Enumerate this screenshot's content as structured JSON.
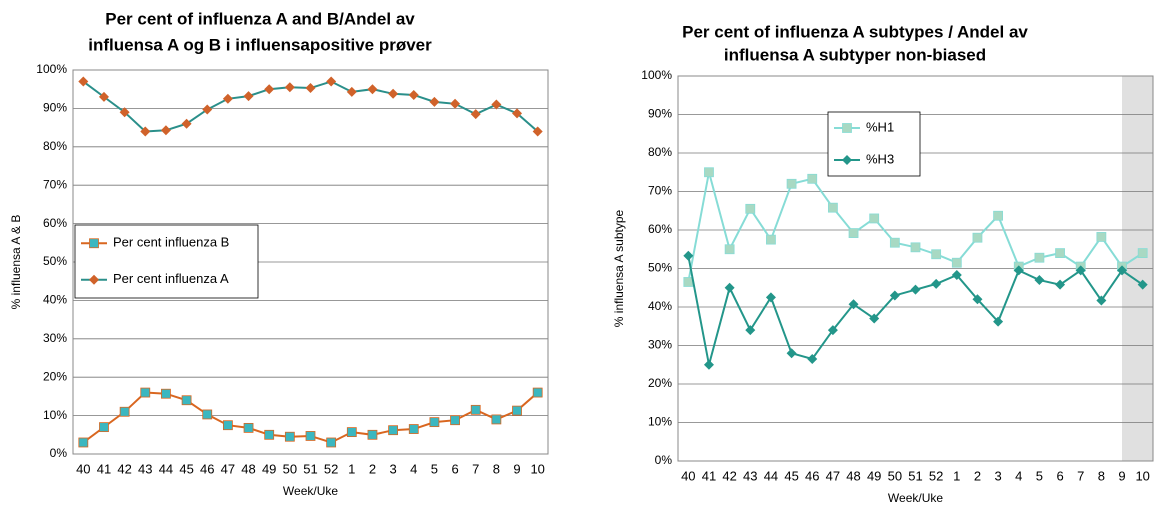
{
  "chart_data": [
    {
      "type": "line",
      "title": [
        "Per cent of influenza A and B/Andel av",
        "influensa A og B i influensapositive prøver"
      ],
      "x_label": "Week/Uke",
      "y_label": "% influensa A & B",
      "categories": [
        "40",
        "41",
        "42",
        "43",
        "44",
        "45",
        "46",
        "47",
        "48",
        "49",
        "50",
        "51",
        "52",
        "1",
        "2",
        "3",
        "4",
        "5",
        "6",
        "7",
        "8",
        "9",
        "10"
      ],
      "series": [
        {
          "name": "Per cent influenza B",
          "color": "#d9661f",
          "marker": "square",
          "marker_color": "#3bb7c0",
          "values": [
            3,
            7,
            11,
            16,
            15.7,
            14,
            10.3,
            7.5,
            6.8,
            5,
            4.5,
            4.7,
            3,
            5.7,
            5,
            6.2,
            6.5,
            8.3,
            8.8,
            11.5,
            9,
            11.3,
            16
          ]
        },
        {
          "name": "Per cent influenza A",
          "color": "#2a8f8a",
          "marker": "diamond",
          "marker_color": "#d0622a",
          "values": [
            97,
            93,
            89,
            84,
            84.3,
            86,
            89.7,
            92.5,
            93.2,
            95,
            95.5,
            95.3,
            97,
            94.3,
            95,
            93.8,
            93.5,
            91.7,
            91.2,
            88.5,
            91,
            88.7,
            84
          ]
        }
      ],
      "ylim": [
        0,
        100
      ],
      "yticks": [
        {
          "value": 0,
          "label": "0%"
        },
        {
          "value": 10,
          "label": "10%"
        },
        {
          "value": 20,
          "label": "20%"
        },
        {
          "value": 30,
          "label": "30%"
        },
        {
          "value": 40,
          "label": "40%"
        },
        {
          "value": 50,
          "label": "50%"
        },
        {
          "value": 60,
          "label": "60%"
        },
        {
          "value": 70,
          "label": "70%"
        },
        {
          "value": 80,
          "label": "80%"
        },
        {
          "value": 90,
          "label": "90%"
        },
        {
          "value": 100,
          "label": "100%"
        }
      ],
      "grid": true
    },
    {
      "type": "line",
      "title": [
        "Per cent of influenza A subtypes / Andel av",
        "influensa A subtyper non-biased"
      ],
      "x_label": "Week/Uke",
      "y_label": "% influensa A subtype",
      "categories": [
        "40",
        "41",
        "42",
        "43",
        "44",
        "45",
        "46",
        "47",
        "48",
        "49",
        "50",
        "51",
        "52",
        "1",
        "2",
        "3",
        "4",
        "5",
        "6",
        "7",
        "8",
        "9",
        "10"
      ],
      "series": [
        {
          "name": "%H1",
          "color": "#86dcd6",
          "marker": "square",
          "marker_color": "#a8d9c3",
          "values": [
            46.5,
            75,
            55,
            65.5,
            57.5,
            72,
            73.3,
            65.8,
            59.2,
            63,
            56.7,
            55.5,
            53.7,
            51.5,
            58,
            63.7,
            50.5,
            52.8,
            54,
            50.5,
            58.2,
            50.5,
            54
          ]
        },
        {
          "name": "%H3",
          "color": "#23968a",
          "marker": "diamond",
          "marker_color": "#23968a",
          "values": [
            53.3,
            25,
            45,
            34,
            42.5,
            28,
            26.5,
            34,
            40.7,
            37,
            43,
            44.5,
            46,
            48.3,
            42,
            36.2,
            49.5,
            47,
            45.8,
            49.5,
            41.7,
            49.5,
            45.8
          ]
        }
      ],
      "ylim": [
        0,
        100
      ],
      "yticks": [
        {
          "value": 0,
          "label": "0%"
        },
        {
          "value": 10,
          "label": "10%"
        },
        {
          "value": 20,
          "label": "20%"
        },
        {
          "value": 30,
          "label": "30%"
        },
        {
          "value": 40,
          "label": "40%"
        },
        {
          "value": 50,
          "label": "50%"
        },
        {
          "value": 60,
          "label": "60%"
        },
        {
          "value": 70,
          "label": "70%"
        },
        {
          "value": 80,
          "label": "80%"
        },
        {
          "value": 90,
          "label": "90%"
        },
        {
          "value": 100,
          "label": "100%"
        }
      ],
      "grid": true
    }
  ]
}
